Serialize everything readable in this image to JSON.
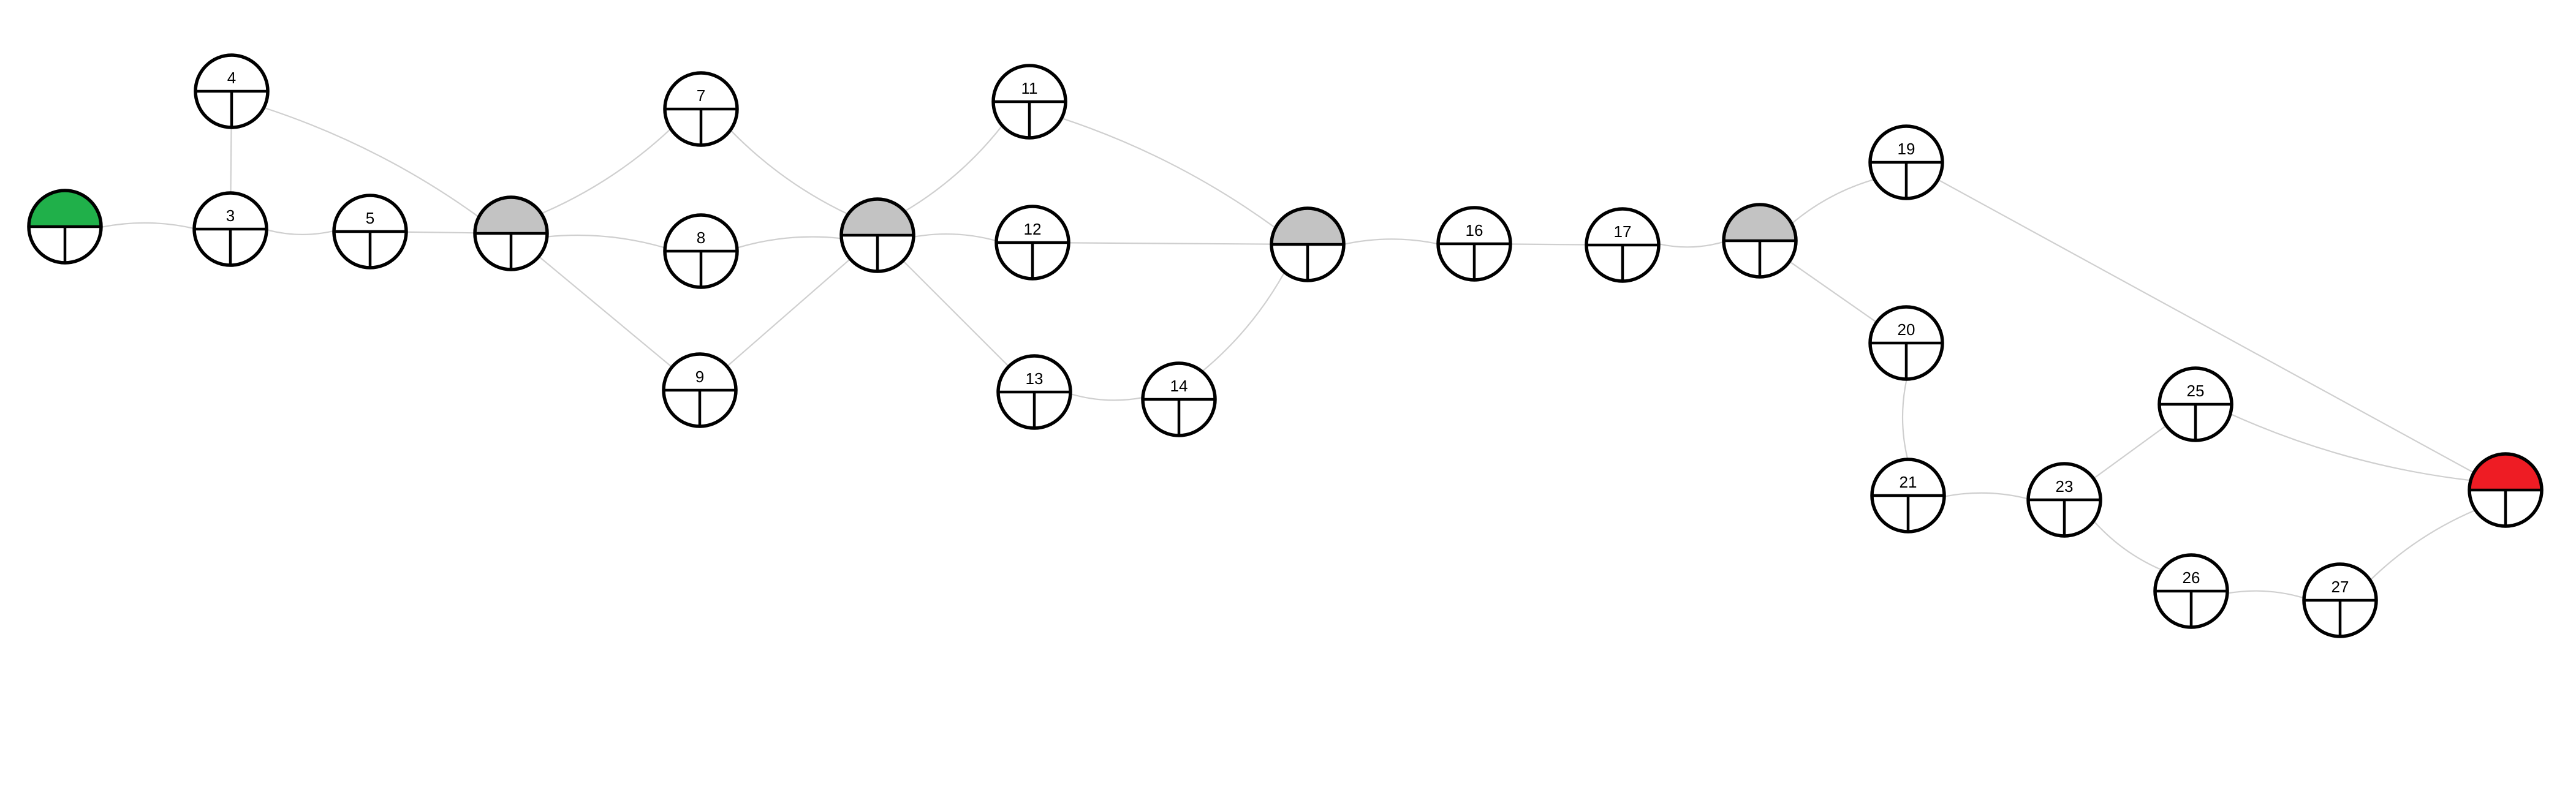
{
  "diagram": {
    "type": "network-diagram",
    "colors": {
      "start": "#20b04a",
      "end": "#ee1c24",
      "merge": "#c3c3c3",
      "node": "#ffffff",
      "edge": "#cfcfcf"
    },
    "nodes": [
      {
        "id": "start",
        "label": "",
        "fill": "start"
      },
      {
        "id": "n3",
        "label": "3",
        "fill": "node"
      },
      {
        "id": "n4",
        "label": "4",
        "fill": "node"
      },
      {
        "id": "n5",
        "label": "5",
        "fill": "node"
      },
      {
        "id": "m1",
        "label": "",
        "fill": "merge"
      },
      {
        "id": "n7",
        "label": "7",
        "fill": "node"
      },
      {
        "id": "n8",
        "label": "8",
        "fill": "node"
      },
      {
        "id": "n9",
        "label": "9",
        "fill": "node"
      },
      {
        "id": "m2",
        "label": "",
        "fill": "merge"
      },
      {
        "id": "n11",
        "label": "11",
        "fill": "node"
      },
      {
        "id": "n12",
        "label": "12",
        "fill": "node"
      },
      {
        "id": "n13",
        "label": "13",
        "fill": "node"
      },
      {
        "id": "n14",
        "label": "14",
        "fill": "node"
      },
      {
        "id": "m3",
        "label": "",
        "fill": "merge"
      },
      {
        "id": "n16",
        "label": "16",
        "fill": "node"
      },
      {
        "id": "n17",
        "label": "17",
        "fill": "node"
      },
      {
        "id": "m4",
        "label": "",
        "fill": "merge"
      },
      {
        "id": "n19",
        "label": "19",
        "fill": "node"
      },
      {
        "id": "n20",
        "label": "20",
        "fill": "node"
      },
      {
        "id": "n21",
        "label": "21",
        "fill": "node"
      },
      {
        "id": "n23",
        "label": "23",
        "fill": "node"
      },
      {
        "id": "n25",
        "label": "25",
        "fill": "node"
      },
      {
        "id": "n26",
        "label": "26",
        "fill": "node"
      },
      {
        "id": "n27",
        "label": "27",
        "fill": "node"
      },
      {
        "id": "end",
        "label": "",
        "fill": "end"
      }
    ],
    "edges": [
      [
        "start",
        "n3"
      ],
      [
        "n3",
        "n4"
      ],
      [
        "n3",
        "n5"
      ],
      [
        "n4",
        "m1"
      ],
      [
        "n5",
        "m1"
      ],
      [
        "m1",
        "n7"
      ],
      [
        "m1",
        "n8"
      ],
      [
        "m1",
        "n9"
      ],
      [
        "n7",
        "m2"
      ],
      [
        "n8",
        "m2"
      ],
      [
        "n9",
        "m2"
      ],
      [
        "m2",
        "n11"
      ],
      [
        "m2",
        "n12"
      ],
      [
        "m2",
        "n13"
      ],
      [
        "n13",
        "n14"
      ],
      [
        "n11",
        "m3"
      ],
      [
        "n12",
        "m3"
      ],
      [
        "n14",
        "m3"
      ],
      [
        "m3",
        "n16"
      ],
      [
        "n16",
        "n17"
      ],
      [
        "n17",
        "m4"
      ],
      [
        "m4",
        "n19"
      ],
      [
        "m4",
        "n20"
      ],
      [
        "n20",
        "n21"
      ],
      [
        "n21",
        "n23"
      ],
      [
        "n23",
        "n25"
      ],
      [
        "n23",
        "n26"
      ],
      [
        "n26",
        "n27"
      ],
      [
        "n19",
        "end"
      ],
      [
        "n25",
        "end"
      ],
      [
        "n27",
        "end"
      ]
    ]
  }
}
